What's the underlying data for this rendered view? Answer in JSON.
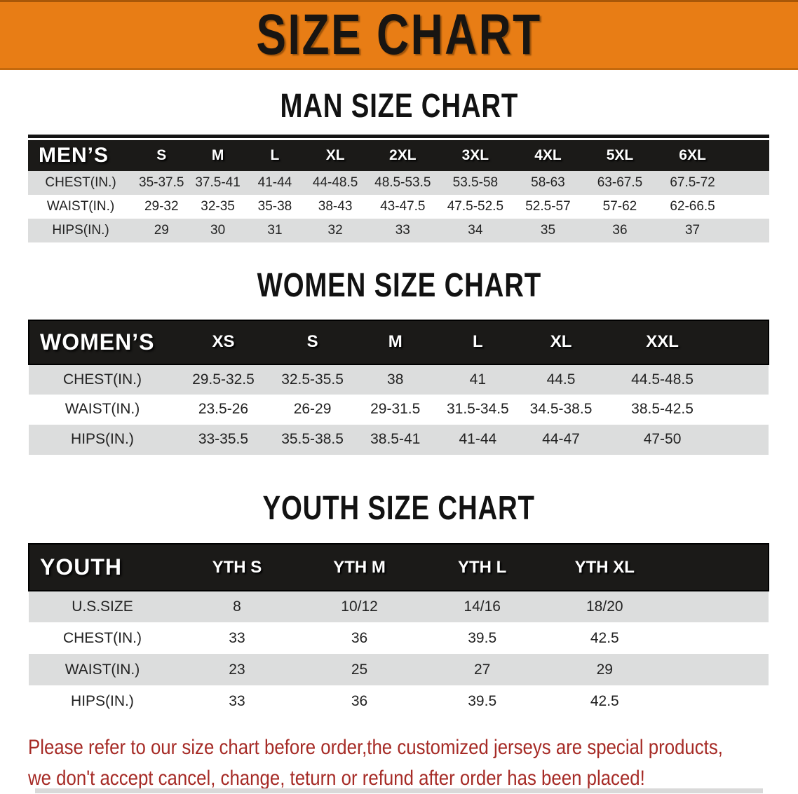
{
  "banner": {
    "title": "SIZE CHART",
    "bg_color": "#E87D15"
  },
  "sections": [
    {
      "heading": "MAN SIZE CHART",
      "table": {
        "header_label": "MEN’S",
        "sizes": [
          "S",
          "M",
          "L",
          "XL",
          "2XL",
          "3XL",
          "4XL",
          "5XL",
          "6XL"
        ],
        "rows": [
          {
            "label": "CHEST(IN.)",
            "values": [
              "35-37.5",
              "37.5-41",
              "41-44",
              "44-48.5",
              "48.5-53.5",
              "53.5-58",
              "58-63",
              "63-67.5",
              "67.5-72"
            ]
          },
          {
            "label": "WAIST(IN.)",
            "values": [
              "29-32",
              "32-35",
              "35-38",
              "38-43",
              "43-47.5",
              "47.5-52.5",
              "52.5-57",
              "57-62",
              "62-66.5"
            ]
          },
          {
            "label": "HIPS(IN.)",
            "values": [
              "29",
              "30",
              "31",
              "32",
              "33",
              "34",
              "35",
              "36",
              "37"
            ]
          }
        ]
      }
    },
    {
      "heading": "WOMEN SIZE CHART",
      "table": {
        "header_label": "WOMEN’S",
        "sizes": [
          "XS",
          "S",
          "M",
          "L",
          "XL",
          "XXL"
        ],
        "rows": [
          {
            "label": "CHEST(IN.)",
            "values": [
              "29.5-32.5",
              "32.5-35.5",
              "38",
              "41",
              "44.5",
              "44.5-48.5"
            ]
          },
          {
            "label": "WAIST(IN.)",
            "values": [
              "23.5-26",
              "26-29",
              "29-31.5",
              "31.5-34.5",
              "34.5-38.5",
              "38.5-42.5"
            ]
          },
          {
            "label": "HIPS(IN.)",
            "values": [
              "33-35.5",
              "35.5-38.5",
              "38.5-41",
              "41-44",
              "44-47",
              "47-50"
            ]
          }
        ]
      }
    },
    {
      "heading": "YOUTH SIZE CHART",
      "table": {
        "header_label": "YOUTH",
        "sizes": [
          "YTH S",
          "YTH M",
          "YTH L",
          "YTH XL"
        ],
        "rows": [
          {
            "label": "U.S.SIZE",
            "values": [
              "8",
              "10/12",
              "14/16",
              "18/20"
            ]
          },
          {
            "label": "CHEST(IN.)",
            "values": [
              "33",
              "36",
              "39.5",
              "42.5"
            ]
          },
          {
            "label": "WAIST(IN.)",
            "values": [
              "23",
              "25",
              "27",
              "29"
            ]
          },
          {
            "label": "HIPS(IN.)",
            "values": [
              "33",
              "36",
              "39.5",
              "42.5"
            ]
          }
        ]
      }
    }
  ],
  "footer": {
    "color": "#A62B26",
    "lines": [
      "Please refer to our size chart before order,the customized jerseys are special products,",
      "we don't accept cancel, change, teturn or refund after order has been placed!"
    ]
  }
}
